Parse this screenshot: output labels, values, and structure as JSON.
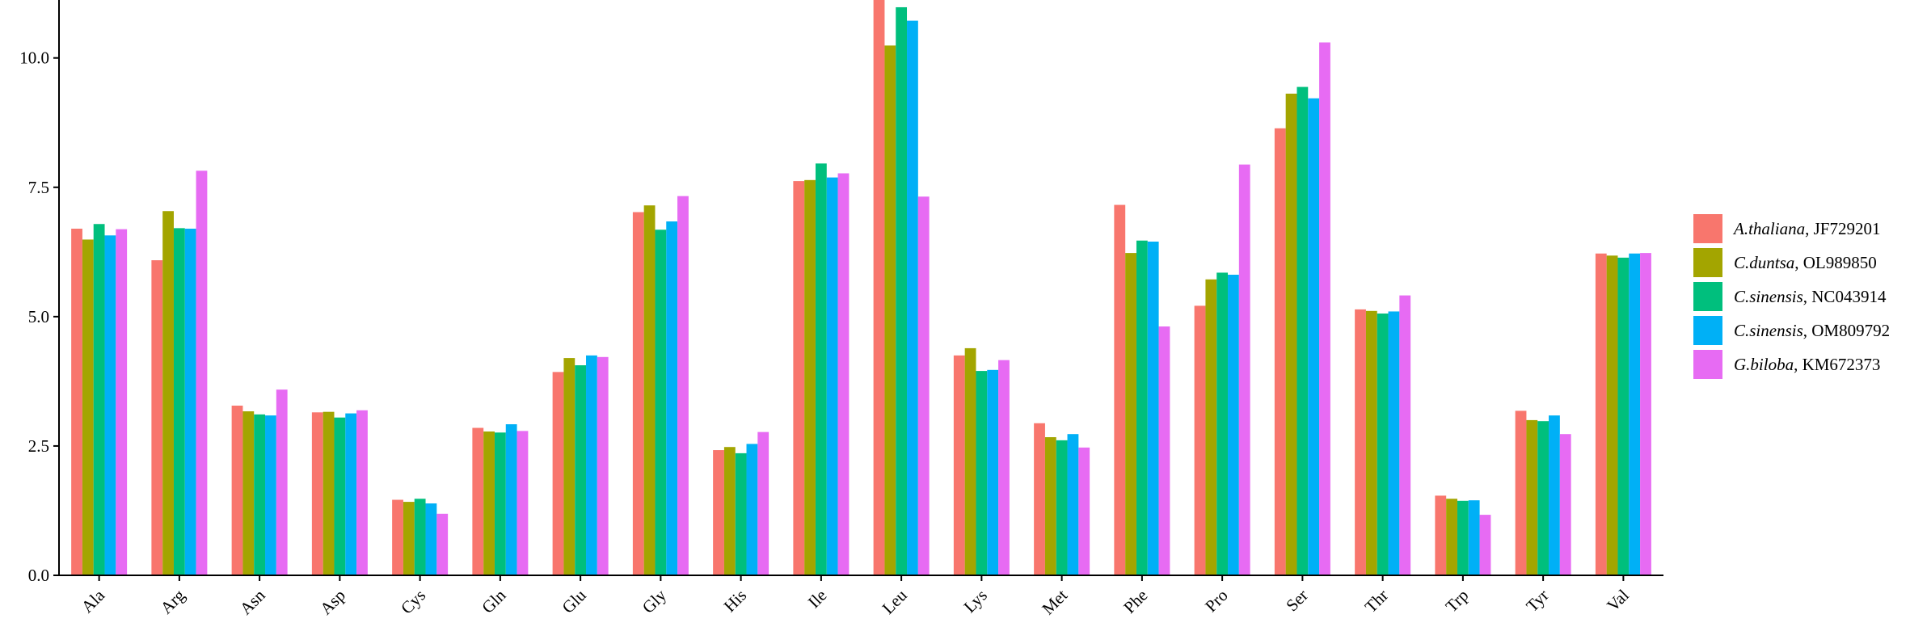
{
  "chart_data": {
    "type": "bar",
    "categories": [
      "Ala",
      "Arg",
      "Asn",
      "Asp",
      "Cys",
      "Gln",
      "Glu",
      "Gly",
      "His",
      "Ile",
      "Leu",
      "Lys",
      "Met",
      "Phe",
      "Pro",
      "Ser",
      "Thr",
      "Trp",
      "Tyr",
      "Val"
    ],
    "ylim": [
      0,
      11.12
    ],
    "yticks": [
      "0.0",
      "2.5",
      "5.0",
      "7.5",
      "10.0"
    ],
    "grid": false,
    "legend_position": "right",
    "series": [
      {
        "name": "A.thaliana, JF729201",
        "species": "A.thaliana",
        "accession": ", JF729201",
        "color": "#F8766D",
        "values": [
          6.7,
          6.09,
          3.28,
          3.15,
          1.46,
          2.85,
          3.93,
          7.02,
          2.42,
          7.62,
          11.35,
          4.25,
          2.94,
          7.16,
          5.21,
          8.64,
          5.14,
          1.54,
          3.18,
          6.22
        ]
      },
      {
        "name": "C.duntsa, OL989850",
        "species": "C.duntsa",
        "accession": ", OL989850",
        "color": "#A3A500",
        "values": [
          6.49,
          7.04,
          3.17,
          3.16,
          1.42,
          2.78,
          4.2,
          7.15,
          2.48,
          7.64,
          10.24,
          4.39,
          2.67,
          6.23,
          5.72,
          9.31,
          5.11,
          1.48,
          3.0,
          6.18
        ]
      },
      {
        "name": "C.sinensis, NC043914",
        "species": "C.sinensis",
        "accession": ", NC043914",
        "color": "#00BF7D",
        "values": [
          6.79,
          6.71,
          3.11,
          3.05,
          1.48,
          2.76,
          4.06,
          6.68,
          2.36,
          7.96,
          10.98,
          3.95,
          2.61,
          6.47,
          5.85,
          9.44,
          5.06,
          1.44,
          2.98,
          6.14
        ]
      },
      {
        "name": "C.sinensis, OM809792",
        "species": "C.sinensis",
        "accession": ", OM809792",
        "color": "#00B0F6",
        "values": [
          6.57,
          6.7,
          3.09,
          3.13,
          1.39,
          2.92,
          4.25,
          6.84,
          2.54,
          7.69,
          10.72,
          3.97,
          2.73,
          6.45,
          5.81,
          9.22,
          5.1,
          1.45,
          3.09,
          6.22
        ]
      },
      {
        "name": "G.biloba, KM672373",
        "species": "G.biloba",
        "accession": ", KM672373",
        "color": "#E76BF3",
        "values": [
          6.69,
          7.82,
          3.59,
          3.19,
          1.19,
          2.79,
          4.22,
          7.33,
          2.77,
          7.77,
          7.32,
          4.16,
          2.47,
          4.81,
          7.94,
          10.3,
          5.41,
          1.17,
          2.73,
          6.23
        ]
      }
    ]
  }
}
